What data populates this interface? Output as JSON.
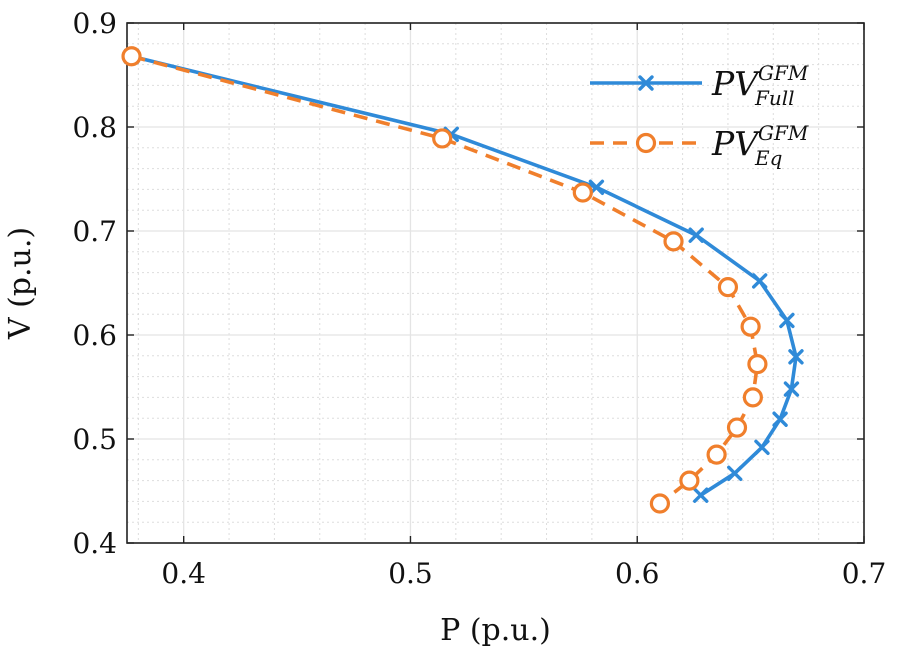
{
  "chart_data": {
    "type": "line",
    "title": "",
    "xlabel": "P (p.u.)",
    "ylabel": "V (p.u.)",
    "xlim": [
      0.375,
      0.7
    ],
    "ylim": [
      0.4,
      0.9
    ],
    "xticks": [
      0.4,
      0.5,
      0.6,
      0.7
    ],
    "yticks": [
      0.4,
      0.5,
      0.6,
      0.7,
      0.8,
      0.9
    ],
    "xtick_labels": [
      "0.4",
      "0.5",
      "0.6",
      "0.7"
    ],
    "ytick_labels": [
      "0.4",
      "0.5",
      "0.6",
      "0.7",
      "0.8",
      "0.9"
    ],
    "grid": true,
    "legend_position": "top-right",
    "series": [
      {
        "name": "PV_Full^GFM",
        "legend_base": "PV",
        "legend_sup": "GFM",
        "legend_sub": "Full",
        "color": "#2f8ad8",
        "line_style": "solid",
        "marker": "x",
        "points": [
          [
            0.377,
            0.868
          ],
          [
            0.518,
            0.793
          ],
          [
            0.582,
            0.742
          ],
          [
            0.626,
            0.696
          ],
          [
            0.654,
            0.652
          ],
          [
            0.666,
            0.614
          ],
          [
            0.67,
            0.579
          ],
          [
            0.668,
            0.548
          ],
          [
            0.663,
            0.519
          ],
          [
            0.655,
            0.492
          ],
          [
            0.643,
            0.467
          ],
          [
            0.628,
            0.446
          ]
        ]
      },
      {
        "name": "PV_Eq^GFM",
        "legend_base": "PV",
        "legend_sup": "GFM",
        "legend_sub": "Eq",
        "color": "#f07f2c",
        "line_style": "dashed",
        "marker": "o",
        "points": [
          [
            0.377,
            0.868
          ],
          [
            0.514,
            0.789
          ],
          [
            0.576,
            0.737
          ],
          [
            0.616,
            0.69
          ],
          [
            0.64,
            0.646
          ],
          [
            0.65,
            0.608
          ],
          [
            0.653,
            0.572
          ],
          [
            0.651,
            0.54
          ],
          [
            0.644,
            0.511
          ],
          [
            0.635,
            0.485
          ],
          [
            0.623,
            0.46
          ],
          [
            0.61,
            0.438
          ]
        ]
      }
    ]
  }
}
